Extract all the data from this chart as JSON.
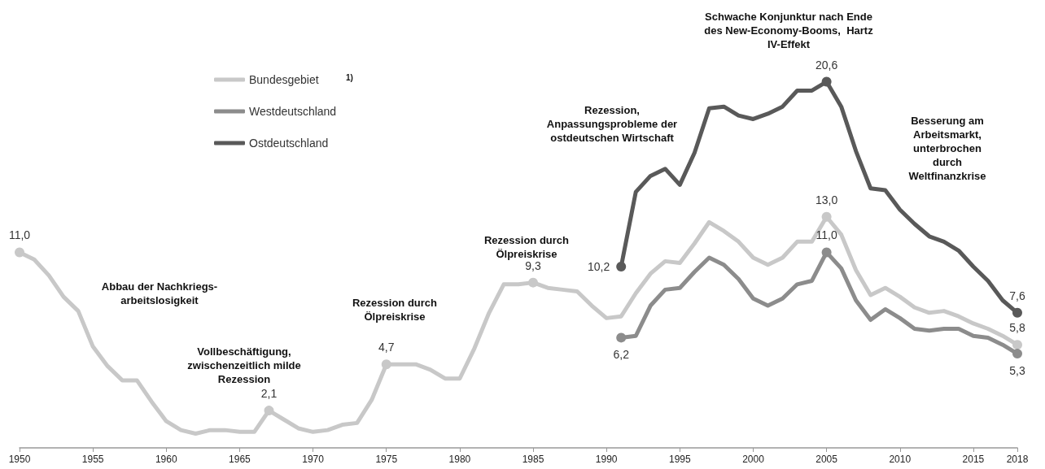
{
  "chart_data": {
    "type": "line",
    "x": [
      1950,
      1951,
      1952,
      1953,
      1954,
      1955,
      1956,
      1957,
      1958,
      1959,
      1960,
      1961,
      1962,
      1963,
      1964,
      1965,
      1966,
      1967,
      1968,
      1969,
      1970,
      1971,
      1972,
      1973,
      1974,
      1975,
      1976,
      1977,
      1978,
      1979,
      1980,
      1981,
      1982,
      1983,
      1984,
      1985,
      1986,
      1987,
      1988,
      1989,
      1990,
      1991,
      1992,
      1993,
      1994,
      1995,
      1996,
      1997,
      1998,
      1999,
      2000,
      2001,
      2002,
      2003,
      2004,
      2005,
      2006,
      2007,
      2008,
      2009,
      2010,
      2011,
      2012,
      2013,
      2014,
      2015,
      2016,
      2017,
      2018
    ],
    "xlim": [
      1950,
      2018
    ],
    "xticks": [
      1950,
      1955,
      1960,
      1965,
      1970,
      1975,
      1980,
      1985,
      1990,
      1995,
      2000,
      2005,
      2010,
      2015,
      2018
    ],
    "series": [
      {
        "name": "Bundesgebiet",
        "color": "#c8c8c8",
        "values": [
          11.0,
          10.6,
          9.7,
          8.5,
          7.7,
          5.7,
          4.6,
          3.8,
          3.8,
          2.6,
          1.5,
          1.0,
          0.8,
          1.0,
          1.0,
          0.9,
          0.9,
          2.1,
          1.6,
          1.1,
          0.9,
          1.0,
          1.3,
          1.4,
          2.7,
          4.7,
          4.7,
          4.7,
          4.4,
          3.9,
          3.9,
          5.6,
          7.6,
          9.2,
          9.2,
          9.3,
          9.0,
          8.9,
          8.8,
          8.0,
          7.3,
          7.4,
          8.7,
          9.8,
          10.5,
          10.4,
          11.5,
          12.7,
          12.2,
          11.6,
          10.7,
          10.3,
          10.7,
          11.6,
          11.6,
          13.0,
          12.0,
          10.0,
          8.6,
          9.0,
          8.5,
          7.9,
          7.6,
          7.7,
          7.4,
          7.0,
          6.7,
          6.3,
          5.8
        ],
        "value_labels": [
          "11,0",
          null,
          null,
          null,
          null,
          null,
          null,
          null,
          null,
          null,
          null,
          null,
          null,
          null,
          null,
          null,
          null,
          "2,1",
          null,
          null,
          null,
          null,
          null,
          null,
          null,
          "4,7",
          null,
          null,
          null,
          null,
          null,
          null,
          null,
          null,
          null,
          "9,3",
          null,
          null,
          null,
          null,
          null,
          null,
          null,
          null,
          null,
          null,
          null,
          null,
          null,
          null,
          null,
          null,
          null,
          null,
          null,
          "13,0",
          null,
          null,
          null,
          null,
          null,
          null,
          null,
          null,
          null,
          null,
          null,
          null,
          "5,8"
        ]
      },
      {
        "name": "Westdeutschland",
        "color": "#8c8c8c",
        "values": [
          null,
          null,
          null,
          null,
          null,
          null,
          null,
          null,
          null,
          null,
          null,
          null,
          null,
          null,
          null,
          null,
          null,
          null,
          null,
          null,
          null,
          null,
          null,
          null,
          null,
          null,
          null,
          null,
          null,
          null,
          null,
          null,
          null,
          null,
          null,
          null,
          null,
          null,
          null,
          null,
          null,
          6.2,
          6.3,
          8.0,
          8.9,
          9.0,
          9.9,
          10.7,
          10.3,
          9.5,
          8.4,
          8.0,
          8.4,
          9.2,
          9.4,
          11.0,
          10.1,
          8.3,
          7.2,
          7.8,
          7.3,
          6.7,
          6.6,
          6.7,
          6.7,
          6.3,
          6.2,
          5.8,
          5.3
        ],
        "value_labels": [
          null,
          null,
          null,
          null,
          null,
          null,
          null,
          null,
          null,
          null,
          null,
          null,
          null,
          null,
          null,
          null,
          null,
          null,
          null,
          null,
          null,
          null,
          null,
          null,
          null,
          null,
          null,
          null,
          null,
          null,
          null,
          null,
          null,
          null,
          null,
          null,
          null,
          null,
          null,
          null,
          null,
          "6,2",
          null,
          null,
          null,
          null,
          null,
          null,
          null,
          null,
          null,
          null,
          null,
          null,
          null,
          "11,0",
          null,
          null,
          null,
          null,
          null,
          null,
          null,
          null,
          null,
          null,
          null,
          null,
          "5,3"
        ]
      },
      {
        "name": "Ostdeutschland",
        "color": "#595959",
        "values": [
          null,
          null,
          null,
          null,
          null,
          null,
          null,
          null,
          null,
          null,
          null,
          null,
          null,
          null,
          null,
          null,
          null,
          null,
          null,
          null,
          null,
          null,
          null,
          null,
          null,
          null,
          null,
          null,
          null,
          null,
          null,
          null,
          null,
          null,
          null,
          null,
          null,
          null,
          null,
          null,
          null,
          10.2,
          14.4,
          15.3,
          15.7,
          14.8,
          16.6,
          19.1,
          19.2,
          18.7,
          18.5,
          18.8,
          19.2,
          20.1,
          20.1,
          20.6,
          19.2,
          16.7,
          14.6,
          14.5,
          13.4,
          12.6,
          11.9,
          11.6,
          11.1,
          10.2,
          9.4,
          8.3,
          7.6
        ],
        "value_labels": [
          null,
          null,
          null,
          null,
          null,
          null,
          null,
          null,
          null,
          null,
          null,
          null,
          null,
          null,
          null,
          null,
          null,
          null,
          null,
          null,
          null,
          null,
          null,
          null,
          null,
          null,
          null,
          null,
          null,
          null,
          null,
          null,
          null,
          null,
          null,
          null,
          null,
          null,
          null,
          null,
          null,
          "10,2",
          null,
          null,
          null,
          null,
          null,
          null,
          null,
          null,
          null,
          null,
          null,
          null,
          null,
          "20,6",
          null,
          null,
          null,
          null,
          null,
          null,
          null,
          null,
          null,
          null,
          null,
          null,
          "7,6"
        ]
      }
    ],
    "legend": "top left",
    "grid": false,
    "annotations": [
      "Schwache Konjunktur nach Ende\ndes New-Economy-Booms,  Hartz\nIV-Effekt",
      "Rezession,\nAnpassungsprobleme der\nostdeutschen Wirtschaft",
      "Besserung am\nArbeitsmarkt,\nunterbrochen\ndurch\nWeltfinanzkrise",
      "Rezession durch\nÖlpreiskrise",
      "Rezession durch\nÖlpreiskrise",
      "Abbau der Nachkriegs-\narbeitslosigkeit",
      "Vollbeschäftigung,\nzwischenzeitlich milde\nRezession",
      "1)"
    ]
  }
}
